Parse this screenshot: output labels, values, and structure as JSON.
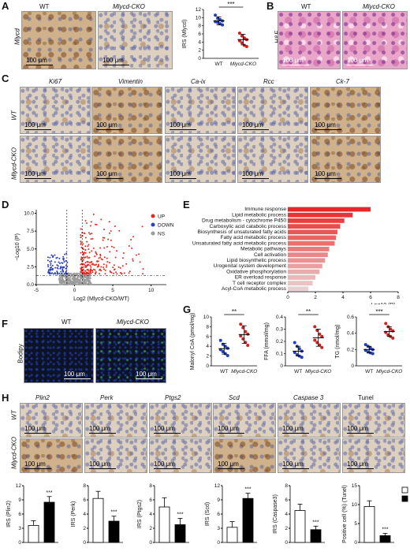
{
  "panels": {
    "A": "A",
    "B": "B",
    "C": "C",
    "D": "D",
    "E": "E",
    "F": "F",
    "G": "G",
    "H": "H"
  },
  "groups": {
    "wt": "WT",
    "cko": "Mlycd-CKO"
  },
  "scale": "100 μm",
  "panelA": {
    "row_label": "Mlycd"
  },
  "panelB": {
    "row_label": "H&E"
  },
  "panelC": {
    "stains": [
      "Ki67",
      "Vimentin",
      "Ca-ix",
      "Rcc",
      "Ck-7"
    ],
    "rows": [
      "WT",
      "Mlycd-CKO"
    ]
  },
  "panelF": {
    "row_label": "Bodipy"
  },
  "panelH": {
    "stains": [
      "Plin2",
      "Perk",
      "Ptgs2",
      "Scd",
      "Caspase 3",
      "Tunel"
    ],
    "rows": [
      "WT",
      "Mlycd-CKO"
    ]
  },
  "chart_data": [
    {
      "id": "A-scatter",
      "type": "scatter",
      "ylabel": "IRS (Mlycd)",
      "ylim": [
        0,
        12
      ],
      "yticks": [
        0,
        2,
        4,
        6,
        8,
        10,
        12
      ],
      "categories": [
        "WT",
        "Mlycd-CKO"
      ],
      "series": [
        {
          "name": "WT",
          "mean": 9.2,
          "sd": 1.0,
          "points": [
            10.6,
            9.8,
            9.5,
            9.2,
            9.0,
            8.8,
            8.5,
            8.2
          ]
        },
        {
          "name": "Mlycd-CKO",
          "mean": 4.6,
          "sd": 1.3,
          "points": [
            6.2,
            5.5,
            5.0,
            4.6,
            4.3,
            3.8,
            3.2,
            2.9
          ]
        }
      ],
      "significance": "***"
    },
    {
      "id": "D-volcano",
      "type": "scatter",
      "xlabel": "Log2 (Mlycd-CKO/WT)",
      "ylabel": "−Log10 (P)",
      "xlim": [
        -5,
        12
      ],
      "ylim": [
        0,
        10.5
      ],
      "xticks": [
        -5,
        0,
        5,
        10
      ],
      "yticks": [
        0.0,
        2.5,
        5.0,
        7.5,
        10.0
      ],
      "legend": [
        "UP",
        "DOWN",
        "NS"
      ],
      "colors": {
        "UP": "#e8271d",
        "DOWN": "#2a3fd0",
        "NS": "#9a9a9a"
      }
    },
    {
      "id": "E-bar",
      "type": "bar",
      "orientation": "horizontal",
      "xlabel": "−Log10 (P)",
      "xlim": [
        0,
        8
      ],
      "xticks": [
        0,
        2,
        4,
        6,
        8
      ],
      "categories": [
        "Immune response",
        "Lipid metabolic process",
        "Drug metabolism - cytochrome P450",
        "Carboxylic acid catabolic process",
        "Biosynthesis of unsaturated fatty acids",
        "Fatty acid metabolic process",
        "Unsaturated fatty acid metabolic process",
        "Metabolic pathways",
        "Cell activation",
        "Lipid biosynthetic process",
        "Urogenital system development",
        "Oxidative phosphorylation",
        "ER overload response",
        "T cell receptor complex",
        "Acyl-CoA metabolic process"
      ],
      "values": [
        6.0,
        4.7,
        4.1,
        3.8,
        3.6,
        3.5,
        3.4,
        3.0,
        2.9,
        2.7,
        2.5,
        2.3,
        2.0,
        1.8,
        1.5
      ]
    },
    {
      "id": "G-malonyl",
      "type": "scatter",
      "ylabel": "Malonyl CoA (pmol/mg)",
      "ylim": [
        0,
        10
      ],
      "yticks": [
        0,
        2,
        4,
        6,
        8,
        10
      ],
      "categories": [
        "WT",
        "Mlycd-CKO"
      ],
      "series": [
        {
          "name": "WT",
          "mean": 3.5,
          "sd": 1.1,
          "points": [
            5.2,
            4.4,
            4.0,
            3.6,
            3.3,
            2.9,
            2.5,
            2.1
          ]
        },
        {
          "name": "Mlycd-CKO",
          "mean": 6.4,
          "sd": 1.8,
          "points": [
            8.5,
            7.8,
            7.0,
            6.5,
            6.1,
            5.5,
            4.8,
            4.2
          ]
        }
      ],
      "significance": "**"
    },
    {
      "id": "G-ffa",
      "type": "scatter",
      "ylabel": "FFA (mmol/mg)",
      "ylim": [
        0,
        0.4
      ],
      "yticks": [
        0.0,
        0.1,
        0.2,
        0.3,
        0.4
      ],
      "categories": [
        "WT",
        "Mlycd-CKO"
      ],
      "series": [
        {
          "name": "WT",
          "mean": 0.12,
          "sd": 0.04,
          "points": [
            0.19,
            0.16,
            0.14,
            0.12,
            0.11,
            0.09,
            0.08,
            0.07
          ]
        },
        {
          "name": "Mlycd-CKO",
          "mean": 0.23,
          "sd": 0.07,
          "points": [
            0.32,
            0.29,
            0.26,
            0.24,
            0.21,
            0.19,
            0.17,
            0.15
          ]
        }
      ],
      "significance": "**"
    },
    {
      "id": "G-tg",
      "type": "scatter",
      "ylabel": "TG (nmol/mg)",
      "ylim": [
        0,
        0.6
      ],
      "yticks": [
        0.0,
        0.2,
        0.4,
        0.6
      ],
      "categories": [
        "WT",
        "Mlycd-CKO"
      ],
      "series": [
        {
          "name": "WT",
          "mean": 0.2,
          "sd": 0.04,
          "points": [
            0.26,
            0.24,
            0.22,
            0.2,
            0.19,
            0.17,
            0.16,
            0.15
          ]
        },
        {
          "name": "Mlycd-CKO",
          "mean": 0.42,
          "sd": 0.06,
          "points": [
            0.52,
            0.48,
            0.45,
            0.43,
            0.41,
            0.38,
            0.36,
            0.34
          ]
        }
      ],
      "significance": "***"
    },
    {
      "id": "H-plin2",
      "type": "bar",
      "ylabel": "IRS (Plin2)",
      "ylim": [
        0,
        12
      ],
      "yticks": [
        0,
        3,
        6,
        9,
        12
      ],
      "categories": [
        "WT",
        "Mlycd-CKO"
      ],
      "values": [
        3.6,
        8.5
      ],
      "errors": [
        1.0,
        1.2
      ],
      "significance": "***"
    },
    {
      "id": "H-perk",
      "type": "bar",
      "ylabel": "IRS (Perk)",
      "ylim": [
        0,
        8
      ],
      "yticks": [
        0,
        2,
        4,
        6,
        8
      ],
      "categories": [
        "WT",
        "Mlycd-CKO"
      ],
      "values": [
        6.2,
        3.0
      ],
      "errors": [
        1.0,
        0.7
      ],
      "significance": "***"
    },
    {
      "id": "H-ptgs2",
      "type": "bar",
      "ylabel": "IRS (Ptgs2)",
      "ylim": [
        0,
        8
      ],
      "yticks": [
        0,
        2,
        4,
        6,
        8
      ],
      "categories": [
        "WT",
        "Mlycd-CKO"
      ],
      "values": [
        5.0,
        2.5
      ],
      "errors": [
        1.3,
        0.9
      ],
      "significance": "***"
    },
    {
      "id": "H-scd",
      "type": "bar",
      "ylabel": "IRS (Scd)",
      "ylim": [
        0,
        12
      ],
      "yticks": [
        0,
        3,
        6,
        9,
        12
      ],
      "categories": [
        "WT",
        "Mlycd-CKO"
      ],
      "values": [
        3.2,
        9.3
      ],
      "errors": [
        1.2,
        1.1
      ],
      "significance": "***"
    },
    {
      "id": "H-caspase3",
      "type": "bar",
      "ylabel": "IRS (Caspase3)",
      "ylim": [
        0,
        8
      ],
      "yticks": [
        0,
        2,
        4,
        6,
        8
      ],
      "categories": [
        "WT",
        "Mlycd-CKO"
      ],
      "values": [
        4.5,
        1.8
      ],
      "errors": [
        0.9,
        0.5
      ],
      "significance": "***"
    },
    {
      "id": "H-tunel",
      "type": "bar",
      "ylabel": "Positive cell (%) (Tunel)",
      "ylim": [
        0,
        15
      ],
      "yticks": [
        0,
        5,
        10,
        15
      ],
      "categories": [
        "WT",
        "Mlycd-CKO"
      ],
      "values": [
        9.5,
        1.8
      ],
      "errors": [
        1.5,
        0.6
      ],
      "significance": "***",
      "legend": [
        "WT",
        "Mlycd-CKO"
      ]
    }
  ]
}
